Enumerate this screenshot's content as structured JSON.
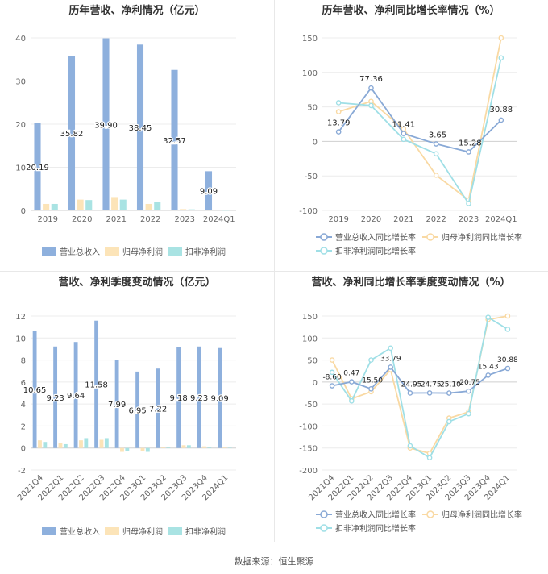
{
  "footer": "数据来源：恒生聚源",
  "colors": {
    "revenue": "#8eb0dd",
    "net_profit": "#fce4b8",
    "deducted_profit": "#a9e3e3",
    "revenue_line": "#89a9d6",
    "net_profit_line": "#f9d9a3",
    "deducted_line": "#9fdfe6",
    "grid": "#ececec",
    "axis_text": "#666666"
  },
  "chart_data": [
    {
      "id": "annual_value",
      "type": "bar",
      "title": "历年营收、净利情况（亿元）",
      "categories": [
        "2019",
        "2020",
        "2021",
        "2022",
        "2023",
        "2024Q1"
      ],
      "ylim": [
        0,
        40
      ],
      "yticks": [
        0,
        10,
        20,
        30,
        40
      ],
      "series": [
        {
          "name": "营业总收入",
          "values": [
            20.19,
            35.82,
            39.9,
            38.45,
            32.57,
            9.09
          ],
          "labels": [
            "20.19",
            "35.82",
            "39.90",
            "38.45",
            "32.57",
            "9.09"
          ]
        },
        {
          "name": "归母净利润",
          "values": [
            1.5,
            2.5,
            3.1,
            1.5,
            0.3,
            0.1
          ]
        },
        {
          "name": "扣非净利润",
          "values": [
            1.5,
            2.4,
            2.5,
            1.9,
            0.25,
            0.05
          ]
        }
      ],
      "legend": "bottom",
      "grid": true
    },
    {
      "id": "annual_growth",
      "type": "line",
      "title": "历年营收、净利同比增长率情况（%）",
      "categories": [
        "2019",
        "2020",
        "2021",
        "2022",
        "2023",
        "2024Q1"
      ],
      "ylim": [
        -100,
        150
      ],
      "yticks": [
        -100,
        -50,
        0,
        50,
        100,
        150
      ],
      "series": [
        {
          "name": "营业总收入同比增长率",
          "values": [
            13.79,
            77.36,
            11.41,
            -3.65,
            -15.28,
            30.88
          ],
          "labels": [
            "13.79",
            "77.36",
            "11.41",
            "-3.65",
            "-15.28",
            "30.88"
          ]
        },
        {
          "name": "归母净利润同比增长率",
          "values": [
            43,
            58,
            18,
            -49,
            -85,
            150
          ]
        },
        {
          "name": "扣非净利润同比增长率",
          "values": [
            56,
            52,
            3,
            -18,
            -90,
            121
          ]
        }
      ],
      "legend": "bottom",
      "grid": true
    },
    {
      "id": "quarterly_value",
      "type": "bar",
      "title": "营收、净利季度变动情况（亿元）",
      "categories": [
        "2021Q4",
        "2022Q1",
        "2022Q2",
        "2022Q3",
        "2022Q4",
        "2023Q1",
        "2023Q2",
        "2023Q3",
        "2023Q4",
        "2024Q1"
      ],
      "ylim": [
        -2,
        12
      ],
      "yticks": [
        -2,
        0,
        2,
        4,
        6,
        8,
        10,
        12
      ],
      "series": [
        {
          "name": "营业总收入",
          "values": [
            10.65,
            9.23,
            9.64,
            11.58,
            7.99,
            6.95,
            7.22,
            9.18,
            9.23,
            9.09
          ],
          "labels": [
            "10.65",
            "9.23",
            "9.64",
            "11.58",
            "7.99",
            "6.95",
            "7.22",
            "9.18",
            "9.23",
            "9.09"
          ]
        },
        {
          "name": "归母净利润",
          "values": [
            0.7,
            0.45,
            0.7,
            0.75,
            -0.35,
            -0.3,
            0.1,
            0.25,
            0.15,
            0.05
          ]
        },
        {
          "name": "扣非净利润",
          "values": [
            0.55,
            0.35,
            0.9,
            0.9,
            -0.3,
            -0.35,
            0.05,
            0.25,
            0.1,
            0.03
          ]
        }
      ],
      "legend": "bottom",
      "grid": true
    },
    {
      "id": "quarterly_growth",
      "type": "line",
      "title": "营收、净利同比增长率季度变动情况（%）",
      "categories": [
        "2021Q4",
        "2022Q1",
        "2022Q2",
        "2022Q3",
        "2022Q4",
        "2023Q1",
        "2023Q2",
        "2023Q3",
        "2023Q4",
        "2024Q1"
      ],
      "ylim": [
        -200,
        150
      ],
      "yticks": [
        -200,
        -150,
        -100,
        -50,
        0,
        50,
        100,
        150
      ],
      "series": [
        {
          "name": "营业总收入同比增长率",
          "values": [
            -8.6,
            0.47,
            -15.5,
            33.79,
            -24.95,
            -24.75,
            -25.1,
            -20.75,
            15.43,
            30.88
          ],
          "labels": [
            "-8.60",
            "0.47",
            "-15.50",
            "33.79",
            "-24.95",
            "-24.75",
            "-25.10",
            "-20.75",
            "15.43",
            "30.88"
          ]
        },
        {
          "name": "归母净利润同比增长率",
          "values": [
            50,
            -38,
            -22,
            28,
            -150,
            -162,
            -82,
            -68,
            142,
            150
          ]
        },
        {
          "name": "扣非净利润同比增长率",
          "values": [
            22,
            -43,
            50,
            77,
            -145,
            -172,
            -90,
            -72,
            147,
            120
          ]
        }
      ],
      "legend": "bottom",
      "grid": true
    }
  ]
}
